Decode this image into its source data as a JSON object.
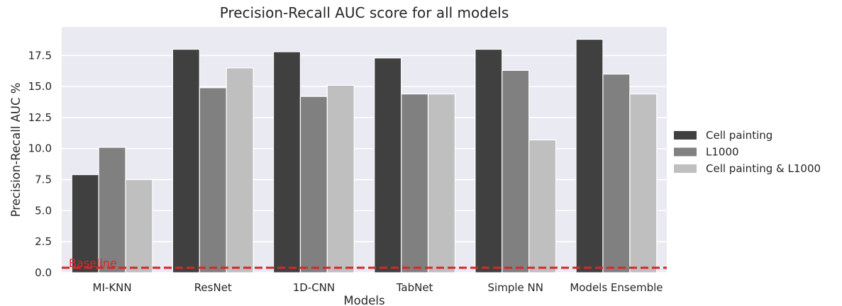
{
  "chart_data": {
    "type": "bar",
    "title": "Precision-Recall AUC score for all models",
    "xlabel": "Models",
    "ylabel": "Precision-Recall AUC %",
    "categories": [
      "MI-KNN",
      "ResNet",
      "1D-CNN",
      "TabNet",
      "Simple NN",
      "Models Ensemble"
    ],
    "series": [
      {
        "name": "Cell painting",
        "color": "#404040",
        "values": [
          7.9,
          18.0,
          17.8,
          17.3,
          18.0,
          18.8
        ]
      },
      {
        "name": "L1000",
        "color": "#808080",
        "values": [
          10.1,
          14.9,
          14.2,
          14.4,
          16.3,
          16.0
        ]
      },
      {
        "name": "Cell painting & L1000",
        "color": "#bfbfbf",
        "values": [
          7.5,
          16.5,
          15.1,
          14.4,
          10.7,
          14.4
        ]
      }
    ],
    "ylim": [
      0,
      19.8
    ],
    "yticks": [
      "0.0",
      "2.5",
      "5.0",
      "7.5",
      "10.0",
      "12.5",
      "15.0",
      "17.5"
    ],
    "grid": true,
    "legend_position": "right",
    "baseline": {
      "label": "Baseline",
      "value": 0.4,
      "color": "#d62728"
    },
    "background_color": "#eaeaf2"
  }
}
